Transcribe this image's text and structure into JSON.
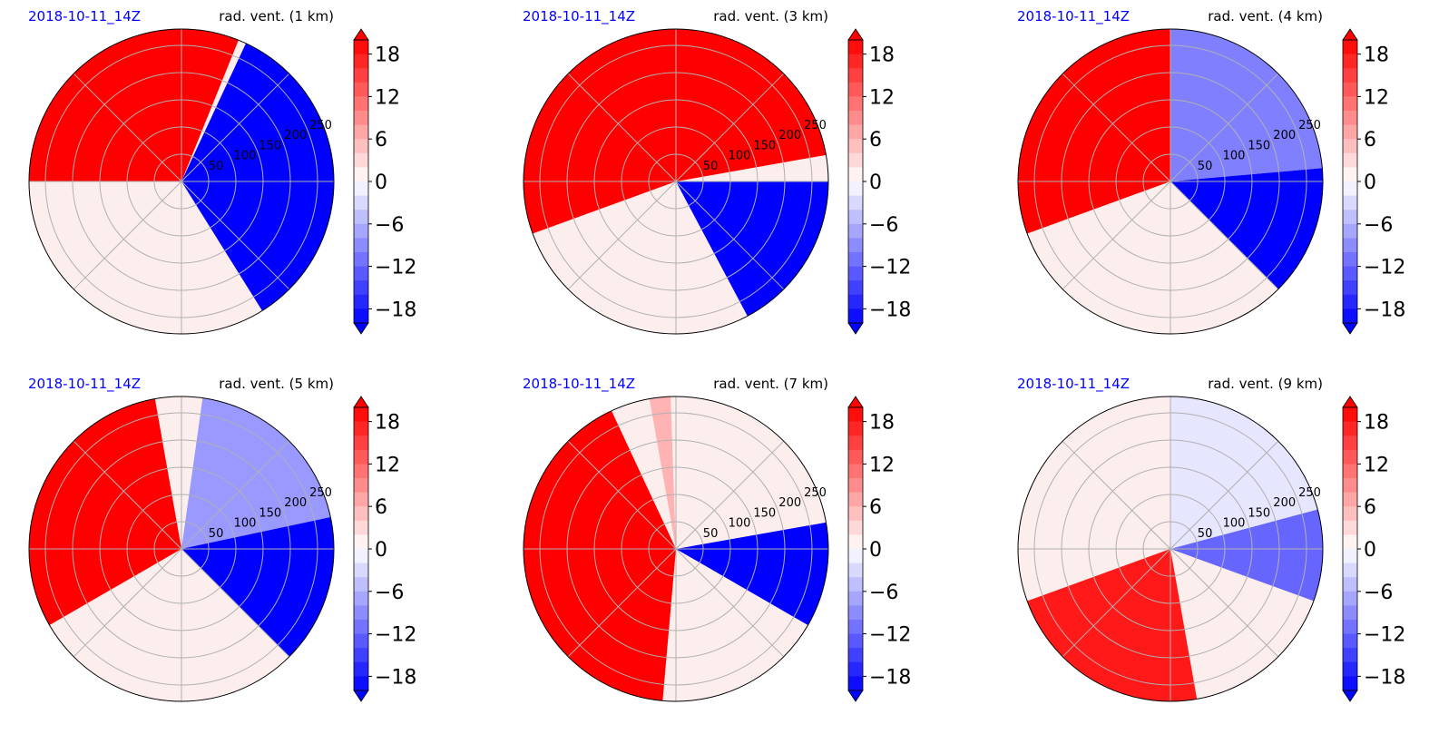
{
  "colors": {
    "positive": "#ff0000",
    "negative": "#0000ff",
    "neutral": "#fdeeee",
    "grid": "#b0b0b0",
    "date_text": "#0000ff"
  },
  "chart_data": [
    {
      "type": "polar-contour",
      "date": "2018-10-11_14Z",
      "title": "rad. vent. (1 km)",
      "ring_labels": [
        "50",
        "100",
        "150",
        "200",
        "250"
      ],
      "colorbar": {
        "ticks": [
          "18",
          "12",
          "6",
          "0",
          "−6",
          "−12",
          "−18"
        ],
        "range": [
          -20,
          20
        ],
        "extend": "both",
        "colormap": "bwr"
      },
      "regions": [
        {
          "name": "red-sector",
          "value": 20,
          "angles": [
            90,
            180
          ]
        },
        {
          "name": "red-north",
          "value": 20,
          "angles": [
            68,
            90
          ]
        },
        {
          "name": "blue-northeast",
          "value": -20,
          "angles": [
            0,
            65
          ]
        },
        {
          "name": "blue-southeast",
          "value": -20,
          "angles": [
            -58,
            0
          ]
        }
      ]
    },
    {
      "type": "polar-contour",
      "date": "2018-10-11_14Z",
      "title": "rad. vent. (3 km)",
      "ring_labels": [
        "50",
        "100",
        "150",
        "200",
        "250"
      ],
      "colorbar": {
        "ticks": [
          "18",
          "12",
          "6",
          "0",
          "−6",
          "−12",
          "−18"
        ],
        "range": [
          -20,
          20
        ],
        "extend": "both",
        "colormap": "bwr"
      },
      "regions": [
        {
          "name": "red-west",
          "value": 20,
          "angles": [
            90,
            200
          ]
        },
        {
          "name": "red-north",
          "value": 20,
          "angles": [
            10,
            90
          ]
        },
        {
          "name": "blue-southeast",
          "value": -20,
          "angles": [
            -62,
            0
          ]
        }
      ]
    },
    {
      "type": "polar-contour",
      "date": "2018-10-11_14Z",
      "title": "rad. vent. (4 km)",
      "ring_labels": [
        "50",
        "100",
        "150",
        "200",
        "250"
      ],
      "colorbar": {
        "ticks": [
          "18",
          "12",
          "6",
          "0",
          "−6",
          "−12",
          "−18"
        ],
        "range": [
          -20,
          20
        ],
        "extend": "both",
        "colormap": "bwr"
      },
      "regions": [
        {
          "name": "red-west",
          "value": 20,
          "angles": [
            90,
            200
          ]
        },
        {
          "name": "blue-northeast",
          "value": -10,
          "angles": [
            5,
            90
          ]
        },
        {
          "name": "blue-southeast",
          "value": -20,
          "angles": [
            -45,
            5
          ]
        }
      ]
    },
    {
      "type": "polar-contour",
      "date": "2018-10-11_14Z",
      "title": "rad. vent. (5 km)",
      "ring_labels": [
        "50",
        "100",
        "150",
        "200",
        "250"
      ],
      "colorbar": {
        "ticks": [
          "18",
          "12",
          "6",
          "0",
          "−6",
          "−12",
          "−18"
        ],
        "range": [
          -20,
          20
        ],
        "extend": "both",
        "colormap": "bwr"
      },
      "regions": [
        {
          "name": "red-west",
          "value": 20,
          "angles": [
            100,
            210
          ]
        },
        {
          "name": "blue-northeast",
          "value": -8,
          "angles": [
            10,
            82
          ]
        },
        {
          "name": "blue-east",
          "value": -20,
          "angles": [
            -45,
            12
          ]
        }
      ]
    },
    {
      "type": "polar-contour",
      "date": "2018-10-11_14Z",
      "title": "rad. vent. (7 km)",
      "ring_labels": [
        "50",
        "100",
        "150",
        "200",
        "250"
      ],
      "colorbar": {
        "ticks": [
          "18",
          "12",
          "6",
          "0",
          "−6",
          "−12",
          "−18"
        ],
        "range": [
          -20,
          20
        ],
        "extend": "both",
        "colormap": "bwr"
      },
      "regions": [
        {
          "name": "red-west-arc",
          "value": 20,
          "angles": [
            115,
            265
          ]
        },
        {
          "name": "red-plume-north",
          "value": 6,
          "angles": [
            92,
            100
          ]
        },
        {
          "name": "blue-east-cell",
          "value": -20,
          "angles": [
            -30,
            10
          ]
        }
      ]
    },
    {
      "type": "polar-contour",
      "date": "2018-10-11_14Z",
      "title": "rad. vent. (9 km)",
      "ring_labels": [
        "50",
        "100",
        "150",
        "200",
        "250"
      ],
      "colorbar": {
        "ticks": [
          "18",
          "12",
          "6",
          "0",
          "−6",
          "−12",
          "−18"
        ],
        "range": [
          -20,
          20
        ],
        "extend": "both",
        "colormap": "bwr"
      },
      "regions": [
        {
          "name": "red-southwest-band",
          "value": 18,
          "angles": [
            200,
            280
          ]
        },
        {
          "name": "blue-east-cells",
          "value": -12,
          "angles": [
            -20,
            30
          ]
        },
        {
          "name": "pale-blue-north",
          "value": -2,
          "angles": [
            15,
            90
          ]
        }
      ]
    }
  ]
}
